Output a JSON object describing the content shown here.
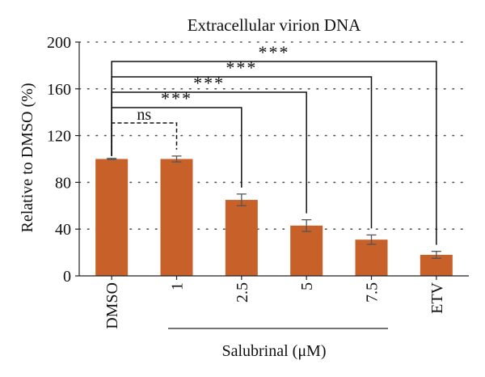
{
  "chart_data": {
    "type": "bar",
    "title": "Extracellular virion DNA",
    "ylabel": "Relative to DMSO (%)",
    "xlabel": "Salubrinal (μM)",
    "categories": [
      "DMSO",
      "1",
      "2.5",
      "5",
      "7.5",
      "ETV"
    ],
    "values": [
      100,
      100,
      65,
      43,
      31,
      18
    ],
    "errors": [
      0.5,
      2.5,
      5,
      5,
      4,
      3
    ],
    "ylim": [
      0,
      200
    ],
    "yticks": [
      "0",
      "40",
      "80",
      "120",
      "160",
      "200"
    ],
    "grid": "dotted-horizontal",
    "bar_color": "#c8602a",
    "significance": [
      {
        "from": "DMSO",
        "to": "1",
        "label": "ns"
      },
      {
        "from": "DMSO",
        "to": "2.5",
        "label": "***"
      },
      {
        "from": "DMSO",
        "to": "5",
        "label": "***"
      },
      {
        "from": "DMSO",
        "to": "7.5",
        "label": "***"
      },
      {
        "from": "DMSO",
        "to": "ETV",
        "label": "***"
      }
    ],
    "salubrinal_group": [
      "1",
      "2.5",
      "5",
      "7.5"
    ]
  }
}
